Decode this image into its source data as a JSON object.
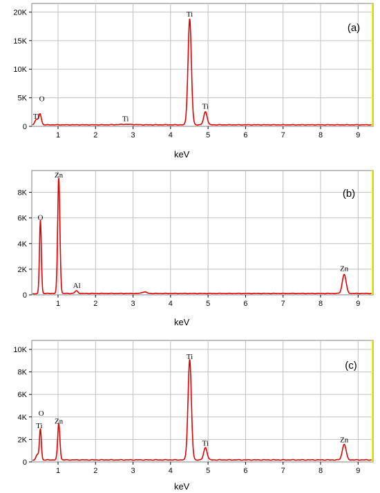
{
  "chart_data": [
    {
      "type": "line",
      "panel_label": "(a)",
      "xlabel": "keV",
      "xlim": [
        0.3,
        9.4
      ],
      "ylim": [
        0,
        21500
      ],
      "x_ticks": [
        1,
        2,
        3,
        4,
        5,
        6,
        7,
        8,
        9
      ],
      "y_ticks": [
        {
          "value": 0,
          "label": "0"
        },
        {
          "value": 5000,
          "label": "5K"
        },
        {
          "value": 10000,
          "label": "10K"
        },
        {
          "value": 15000,
          "label": "15K"
        },
        {
          "value": 20000,
          "label": "20K"
        }
      ],
      "grid": true,
      "colors": {
        "line": "#e00000",
        "marker": "#ffff00",
        "grid": "#c0c0c0"
      },
      "marker_x": 9.37,
      "baseline": 300,
      "peaks": [
        {
          "x": 0.42,
          "y": 1000,
          "width": 0.04
        },
        {
          "x": 0.52,
          "y": 1900,
          "width": 0.035
        },
        {
          "x": 4.51,
          "y": 18500,
          "width": 0.045
        },
        {
          "x": 4.93,
          "y": 2300,
          "width": 0.045
        },
        {
          "x": 2.8,
          "y": 80,
          "width": 0.2
        }
      ],
      "annotations": [
        {
          "text": "Ti",
          "x": 0.42,
          "y": 1350
        },
        {
          "text": "O",
          "x": 0.57,
          "y": 4400
        },
        {
          "text": "Ti",
          "x": 2.8,
          "y": 900
        },
        {
          "text": "Ti",
          "x": 4.51,
          "y": 19200
        },
        {
          "text": "Ti",
          "x": 4.93,
          "y": 3100
        }
      ]
    },
    {
      "type": "line",
      "panel_label": "(b)",
      "xlabel": "keV",
      "xlim": [
        0.3,
        9.4
      ],
      "ylim": [
        0,
        9700
      ],
      "x_ticks": [
        1,
        2,
        3,
        4,
        5,
        6,
        7,
        8,
        9
      ],
      "y_ticks": [
        {
          "value": 0,
          "label": "0"
        },
        {
          "value": 2000,
          "label": "2K"
        },
        {
          "value": 4000,
          "label": "4K"
        },
        {
          "value": 6000,
          "label": "6K"
        },
        {
          "value": 8000,
          "label": "8K"
        }
      ],
      "grid": true,
      "colors": {
        "line": "#e00000",
        "marker": "#ffff00",
        "grid": "#c0c0c0"
      },
      "marker_x": 9.37,
      "baseline": 120,
      "peaks": [
        {
          "x": 0.53,
          "y": 5700,
          "width": 0.025
        },
        {
          "x": 1.02,
          "y": 9000,
          "width": 0.03
        },
        {
          "x": 1.49,
          "y": 200,
          "width": 0.04
        },
        {
          "x": 3.3,
          "y": 120,
          "width": 0.06
        },
        {
          "x": 8.63,
          "y": 1500,
          "width": 0.05
        }
      ],
      "annotations": [
        {
          "text": "Zn",
          "x": 1.02,
          "y": 9150
        },
        {
          "text": "O",
          "x": 0.53,
          "y": 5850
        },
        {
          "text": "Al",
          "x": 1.5,
          "y": 550
        },
        {
          "text": "Zn",
          "x": 8.63,
          "y": 1850
        }
      ]
    },
    {
      "type": "line",
      "panel_label": "(c)",
      "xlabel": "keV",
      "xlim": [
        0.3,
        9.4
      ],
      "ylim": [
        0,
        10800
      ],
      "x_ticks": [
        1,
        2,
        3,
        4,
        5,
        6,
        7,
        8,
        9
      ],
      "y_ticks": [
        {
          "value": 0,
          "label": "0"
        },
        {
          "value": 2000,
          "label": "2K"
        },
        {
          "value": 4000,
          "label": "4K"
        },
        {
          "value": 6000,
          "label": "6K"
        },
        {
          "value": 8000,
          "label": "8K"
        },
        {
          "value": 10000,
          "label": "10K"
        }
      ],
      "grid": true,
      "colors": {
        "line": "#e00000",
        "marker": "#ffff00",
        "grid": "#c0c0c0"
      },
      "marker_x": 9.37,
      "baseline": 200,
      "peaks": [
        {
          "x": 0.45,
          "y": 500,
          "width": 0.04
        },
        {
          "x": 0.53,
          "y": 2700,
          "width": 0.025
        },
        {
          "x": 1.02,
          "y": 3200,
          "width": 0.03
        },
        {
          "x": 4.51,
          "y": 8900,
          "width": 0.045
        },
        {
          "x": 4.93,
          "y": 1100,
          "width": 0.045
        },
        {
          "x": 8.63,
          "y": 1400,
          "width": 0.05
        }
      ],
      "annotations": [
        {
          "text": "O",
          "x": 0.55,
          "y": 4100
        },
        {
          "text": "Ti",
          "x": 0.5,
          "y": 3000
        },
        {
          "text": "Zn",
          "x": 1.02,
          "y": 3400
        },
        {
          "text": "Ti",
          "x": 4.51,
          "y": 9150
        },
        {
          "text": "Ti",
          "x": 4.93,
          "y": 1450
        },
        {
          "text": "Zn",
          "x": 8.63,
          "y": 1750
        }
      ]
    }
  ]
}
